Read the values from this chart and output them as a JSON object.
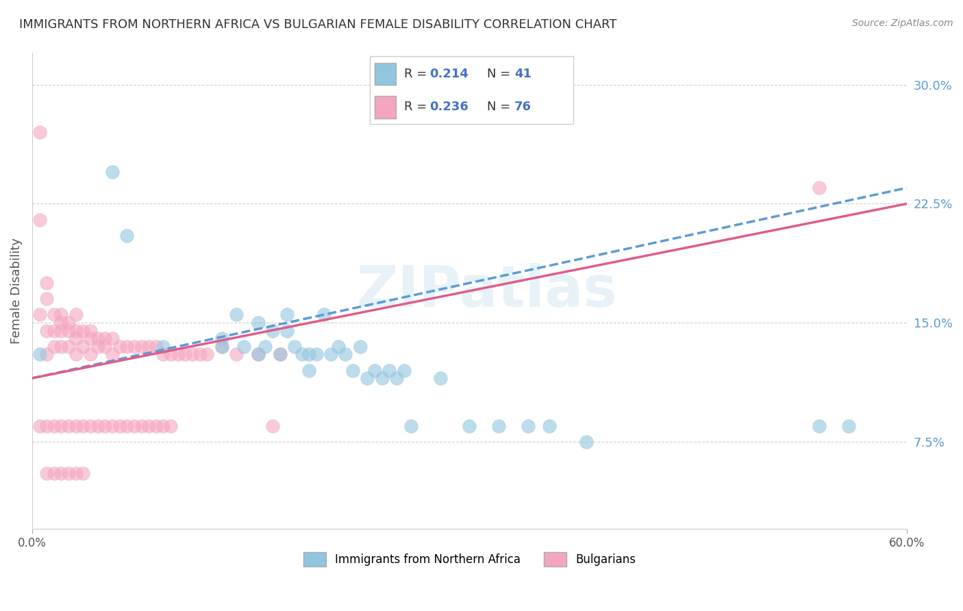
{
  "title": "IMMIGRANTS FROM NORTHERN AFRICA VS BULGARIAN FEMALE DISABILITY CORRELATION CHART",
  "source": "Source: ZipAtlas.com",
  "ylabel": "Female Disability",
  "xlim": [
    0.0,
    0.6
  ],
  "ylim": [
    0.02,
    0.32
  ],
  "watermark": "ZIPatlas",
  "legend_r1": "R =  0.214",
  "legend_n1": "N =  41",
  "legend_r2": "R =  0.236",
  "legend_n2": "N =  76",
  "color_blue": "#92c5de",
  "color_pink": "#f4a6c0",
  "color_blue_line": "#5b9bd5",
  "color_pink_line": "#e05c8a",
  "ytick_positions": [
    0.075,
    0.15,
    0.225,
    0.3
  ],
  "ytick_labels": [
    "7.5%",
    "15.0%",
    "22.5%",
    "30.0%"
  ],
  "xtick_positions": [
    0.0,
    0.6
  ],
  "xtick_labels": [
    "0.0%",
    "60.0%"
  ],
  "grid_color": "#cccccc",
  "background_color": "#ffffff",
  "blue_scatter_x": [
    0.005,
    0.055,
    0.09,
    0.065,
    0.13,
    0.13,
    0.14,
    0.145,
    0.155,
    0.155,
    0.16,
    0.165,
    0.17,
    0.175,
    0.175,
    0.18,
    0.185,
    0.19,
    0.19,
    0.195,
    0.2,
    0.205,
    0.21,
    0.215,
    0.22,
    0.225,
    0.23,
    0.235,
    0.24,
    0.245,
    0.25,
    0.255,
    0.26,
    0.28,
    0.3,
    0.32,
    0.34,
    0.355,
    0.38,
    0.54,
    0.56
  ],
  "blue_scatter_y": [
    0.13,
    0.245,
    0.135,
    0.205,
    0.135,
    0.14,
    0.155,
    0.135,
    0.13,
    0.15,
    0.135,
    0.145,
    0.13,
    0.145,
    0.155,
    0.135,
    0.13,
    0.12,
    0.13,
    0.13,
    0.155,
    0.13,
    0.135,
    0.13,
    0.12,
    0.135,
    0.115,
    0.12,
    0.115,
    0.12,
    0.115,
    0.12,
    0.085,
    0.115,
    0.085,
    0.085,
    0.085,
    0.085,
    0.075,
    0.085,
    0.085
  ],
  "pink_scatter_x": [
    0.005,
    0.005,
    0.005,
    0.01,
    0.01,
    0.01,
    0.01,
    0.015,
    0.015,
    0.015,
    0.02,
    0.02,
    0.02,
    0.02,
    0.025,
    0.025,
    0.025,
    0.03,
    0.03,
    0.03,
    0.03,
    0.035,
    0.035,
    0.04,
    0.04,
    0.04,
    0.045,
    0.045,
    0.05,
    0.05,
    0.055,
    0.055,
    0.06,
    0.065,
    0.07,
    0.075,
    0.08,
    0.085,
    0.09,
    0.095,
    0.1,
    0.105,
    0.11,
    0.115,
    0.12,
    0.13,
    0.14,
    0.155,
    0.165,
    0.17,
    0.005,
    0.01,
    0.015,
    0.02,
    0.025,
    0.03,
    0.035,
    0.04,
    0.045,
    0.05,
    0.055,
    0.06,
    0.065,
    0.07,
    0.075,
    0.08,
    0.085,
    0.09,
    0.095,
    0.54,
    0.01,
    0.015,
    0.02,
    0.025,
    0.03,
    0.035
  ],
  "pink_scatter_y": [
    0.27,
    0.215,
    0.155,
    0.175,
    0.165,
    0.145,
    0.13,
    0.155,
    0.145,
    0.135,
    0.155,
    0.15,
    0.145,
    0.135,
    0.15,
    0.145,
    0.135,
    0.155,
    0.145,
    0.14,
    0.13,
    0.145,
    0.135,
    0.145,
    0.14,
    0.13,
    0.14,
    0.135,
    0.14,
    0.135,
    0.14,
    0.13,
    0.135,
    0.135,
    0.135,
    0.135,
    0.135,
    0.135,
    0.13,
    0.13,
    0.13,
    0.13,
    0.13,
    0.13,
    0.13,
    0.135,
    0.13,
    0.13,
    0.085,
    0.13,
    0.085,
    0.085,
    0.085,
    0.085,
    0.085,
    0.085,
    0.085,
    0.085,
    0.085,
    0.085,
    0.085,
    0.085,
    0.085,
    0.085,
    0.085,
    0.085,
    0.085,
    0.085,
    0.085,
    0.235,
    0.055,
    0.055,
    0.055,
    0.055,
    0.055,
    0.055
  ],
  "blue_line_x0": 0.0,
  "blue_line_y0": 0.115,
  "blue_line_x1": 0.6,
  "blue_line_y1": 0.235,
  "pink_line_x0": 0.0,
  "pink_line_y0": 0.115,
  "pink_line_x1": 0.6,
  "pink_line_y1": 0.225
}
